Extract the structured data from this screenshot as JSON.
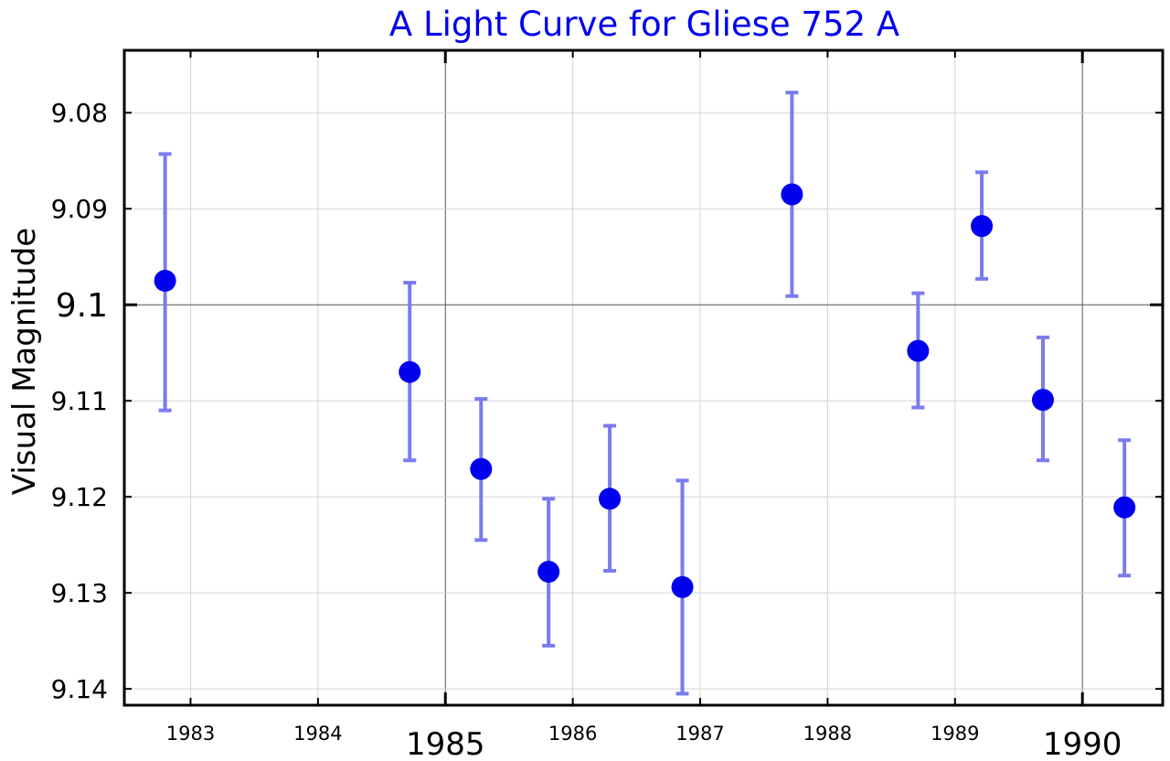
{
  "chart_data": {
    "type": "scatter",
    "title": "A Light Curve for Gliese 752 A",
    "xlabel": "",
    "ylabel": "Visual Magnitude",
    "xlim": [
      1982.48,
      1990.63
    ],
    "ylim": [
      9.1417,
      9.0735
    ],
    "y_inverted": true,
    "grid": true,
    "xticks": [
      1983,
      1984,
      1985,
      1986,
      1987,
      1988,
      1989,
      1990
    ],
    "xtick_labels": [
      "1983",
      "1984",
      "1985",
      "1986",
      "1987",
      "1988",
      "1989",
      "1990"
    ],
    "major_xticks": [
      1985,
      1990
    ],
    "yticks": [
      9.08,
      9.09,
      9.1,
      9.11,
      9.12,
      9.13,
      9.14
    ],
    "ytick_labels": [
      "9.08",
      "9.09",
      "9.1",
      "9.11",
      "9.12",
      "9.13",
      "9.14"
    ],
    "major_yticks": [
      9.1
    ],
    "points": [
      {
        "x": 1982.8,
        "y": 9.0975,
        "low": 9.0843,
        "high": 9.111
      },
      {
        "x": 1984.72,
        "y": 9.107,
        "low": 9.0977,
        "high": 9.1162
      },
      {
        "x": 1985.28,
        "y": 9.1171,
        "low": 9.1098,
        "high": 9.1245
      },
      {
        "x": 1985.81,
        "y": 9.1278,
        "low": 9.1202,
        "high": 9.1355
      },
      {
        "x": 1986.29,
        "y": 9.1202,
        "low": 9.1126,
        "high": 9.1277
      },
      {
        "x": 1986.86,
        "y": 9.1294,
        "low": 9.1183,
        "high": 9.1405
      },
      {
        "x": 1987.72,
        "y": 9.0885,
        "low": 9.0779,
        "high": 9.0991
      },
      {
        "x": 1988.71,
        "y": 9.1048,
        "low": 9.0988,
        "high": 9.1107
      },
      {
        "x": 1989.21,
        "y": 9.0918,
        "low": 9.0862,
        "high": 9.0973
      },
      {
        "x": 1989.69,
        "y": 9.1099,
        "low": 9.1034,
        "high": 9.1162
      },
      {
        "x": 1990.33,
        "y": 9.1211,
        "low": 9.1141,
        "high": 9.1282
      }
    ],
    "colors": {
      "marker": "#0000ee",
      "errorbar": "#7b7bf0",
      "title": "#0000ee",
      "grid": "#d3d3d3",
      "major_grid": "#555555"
    }
  }
}
